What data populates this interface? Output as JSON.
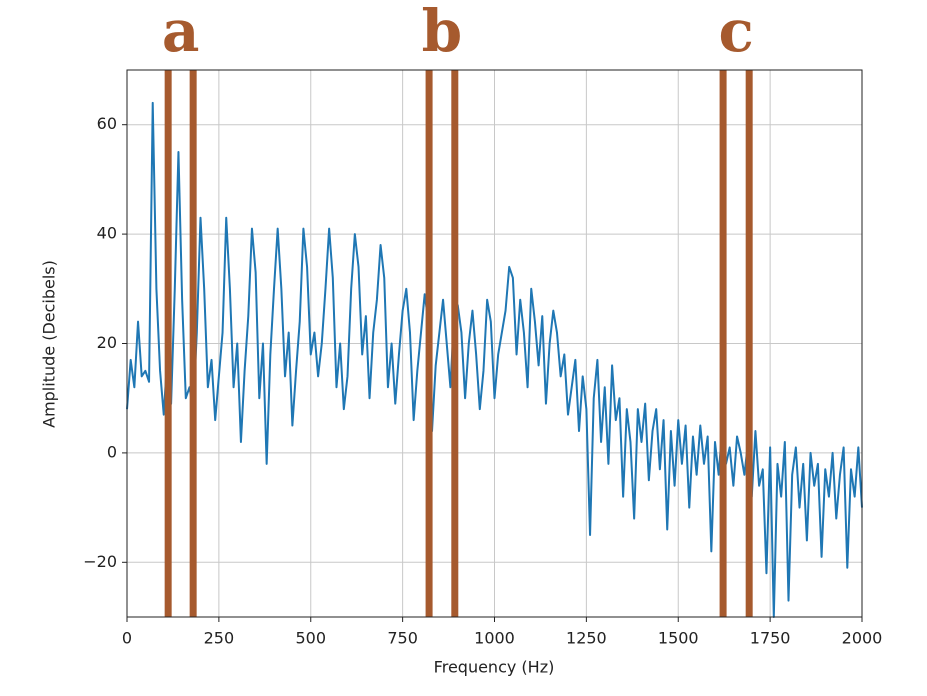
{
  "chart_data": {
    "type": "line",
    "xlabel": "Frequency (Hz)",
    "ylabel": "Amplitude (Decibels)",
    "xlim": [
      0,
      2000
    ],
    "ylim": [
      -30,
      70
    ],
    "xticks": [
      0,
      250,
      500,
      750,
      1000,
      1250,
      1500,
      1750,
      2000
    ],
    "yticks": [
      {
        "value": -20,
        "label": "−20"
      },
      0,
      20,
      40,
      60
    ],
    "grid": true,
    "series": [
      {
        "color": "#1f77b4",
        "x": [
          0,
          10,
          20,
          30,
          40,
          50,
          60,
          70,
          80,
          90,
          100,
          110,
          120,
          130,
          140,
          150,
          160,
          170,
          180,
          190,
          200,
          210,
          220,
          230,
          240,
          250,
          260,
          270,
          280,
          290,
          300,
          310,
          320,
          330,
          340,
          350,
          360,
          370,
          380,
          390,
          400,
          410,
          420,
          430,
          440,
          450,
          460,
          470,
          480,
          490,
          500,
          510,
          520,
          530,
          540,
          550,
          560,
          570,
          580,
          590,
          600,
          610,
          620,
          630,
          640,
          650,
          660,
          670,
          680,
          690,
          700,
          710,
          720,
          730,
          740,
          750,
          760,
          770,
          780,
          790,
          800,
          810,
          820,
          830,
          840,
          850,
          860,
          870,
          880,
          890,
          900,
          910,
          920,
          930,
          940,
          950,
          960,
          970,
          980,
          990,
          1000,
          1010,
          1020,
          1030,
          1040,
          1050,
          1060,
          1070,
          1080,
          1090,
          1100,
          1110,
          1120,
          1130,
          1140,
          1150,
          1160,
          1170,
          1180,
          1190,
          1200,
          1210,
          1220,
          1230,
          1240,
          1250,
          1260,
          1270,
          1280,
          1290,
          1300,
          1310,
          1320,
          1330,
          1340,
          1350,
          1360,
          1370,
          1380,
          1390,
          1400,
          1410,
          1420,
          1430,
          1440,
          1450,
          1460,
          1470,
          1480,
          1490,
          1500,
          1510,
          1520,
          1530,
          1540,
          1550,
          1560,
          1570,
          1580,
          1590,
          1600,
          1610,
          1620,
          1630,
          1640,
          1650,
          1660,
          1670,
          1680,
          1690,
          1700,
          1710,
          1720,
          1730,
          1740,
          1750,
          1760,
          1770,
          1780,
          1790,
          1800,
          1810,
          1820,
          1830,
          1840,
          1850,
          1860,
          1870,
          1880,
          1890,
          1900,
          1910,
          1920,
          1930,
          1940,
          1950,
          1960,
          1970,
          1980,
          1990,
          2000
        ],
        "values": [
          8,
          17,
          12,
          24,
          14,
          15,
          13,
          64,
          30,
          15,
          7,
          18,
          9,
          30,
          55,
          28,
          10,
          12,
          8,
          22,
          43,
          30,
          12,
          17,
          6,
          14,
          22,
          43,
          30,
          12,
          20,
          2,
          15,
          25,
          41,
          33,
          10,
          20,
          -2,
          18,
          30,
          41,
          30,
          14,
          22,
          5,
          15,
          24,
          41,
          34,
          18,
          22,
          14,
          20,
          30,
          41,
          32,
          12,
          20,
          8,
          14,
          30,
          40,
          34,
          18,
          25,
          10,
          22,
          28,
          38,
          32,
          12,
          20,
          9,
          18,
          26,
          30,
          22,
          6,
          15,
          22,
          29,
          24,
          4,
          16,
          22,
          28,
          20,
          12,
          25,
          27,
          22,
          10,
          20,
          26,
          18,
          8,
          15,
          28,
          24,
          10,
          18,
          22,
          26,
          34,
          32,
          18,
          28,
          22,
          12,
          30,
          24,
          16,
          25,
          9,
          20,
          26,
          22,
          14,
          18,
          7,
          12,
          17,
          4,
          14,
          8,
          -15,
          10,
          17,
          2,
          12,
          -2,
          16,
          6,
          10,
          -8,
          8,
          2,
          -12,
          8,
          2,
          9,
          -5,
          4,
          8,
          -3,
          6,
          -14,
          4,
          -6,
          6,
          -2,
          5,
          -10,
          3,
          -4,
          5,
          -2,
          3,
          -18,
          2,
          -4,
          5,
          -2,
          1,
          -6,
          3,
          0,
          -4,
          2,
          -8,
          4,
          -6,
          -3,
          -22,
          1,
          -30,
          -2,
          -8,
          2,
          -27,
          -4,
          1,
          -10,
          -2,
          -16,
          0,
          -6,
          -2,
          -19,
          -3,
          -8,
          0,
          -12,
          -4,
          1,
          -21,
          -3,
          -8,
          1,
          -10
        ]
      }
    ],
    "marker_color": "#a65a2e",
    "markers": [
      {
        "label": "a",
        "x": [
          112,
          180
        ]
      },
      {
        "label": "b",
        "x": [
          822,
          892
        ]
      },
      {
        "label": "c",
        "x": [
          1622,
          1693
        ]
      }
    ]
  }
}
